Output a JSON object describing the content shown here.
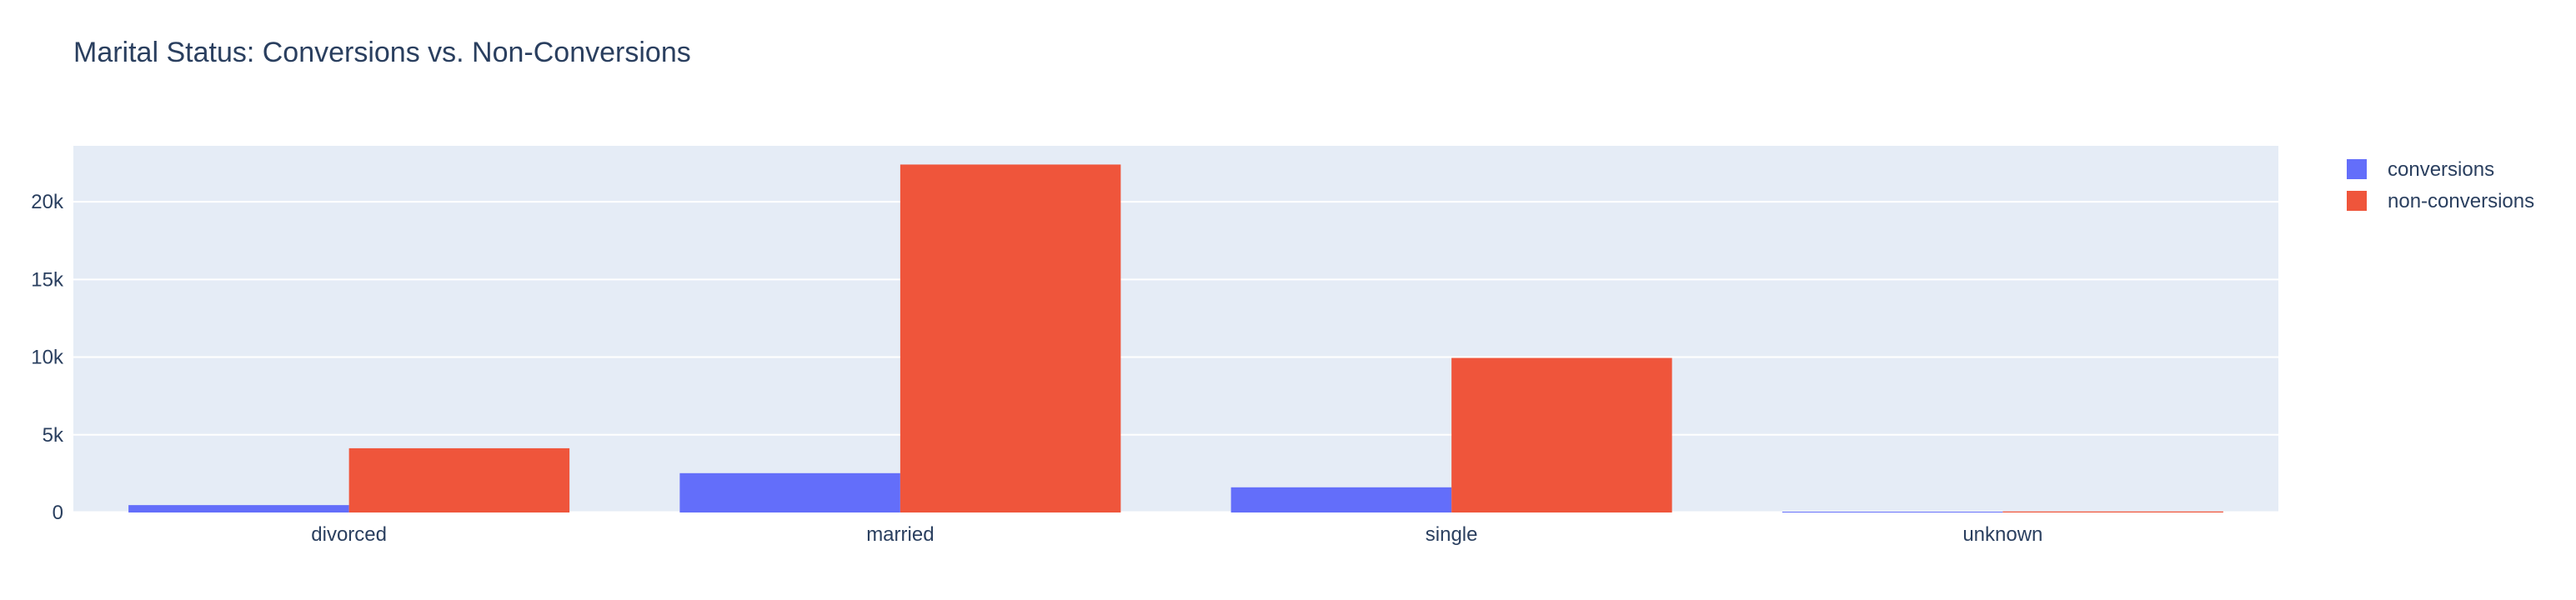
{
  "chart_data": {
    "type": "bar",
    "title": "Marital Status: Conversions vs. Non-Conversions",
    "categories": [
      "divorced",
      "married",
      "single",
      "unknown"
    ],
    "series": [
      {
        "name": "conversions",
        "values": [
          476,
          2532,
          1620,
          12
        ],
        "color": "#636efa"
      },
      {
        "name": "non-conversions",
        "values": [
          4136,
          22396,
          9948,
          68
        ],
        "color": "#ef553b"
      }
    ],
    "ylim": [
      0,
      23600
    ],
    "yticks": [
      0,
      5000,
      10000,
      15000,
      20000
    ],
    "ytick_labels": [
      "0",
      "5k",
      "10k",
      "15k",
      "20k"
    ],
    "grid": true,
    "legend_position": "top-right",
    "plot_bg": "#e5ecf6"
  }
}
